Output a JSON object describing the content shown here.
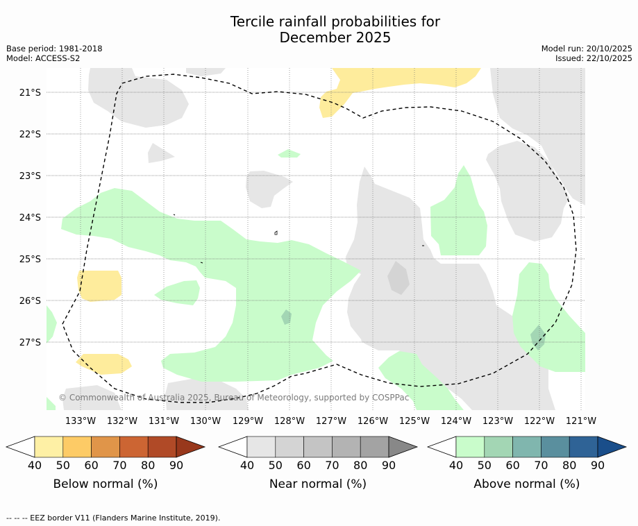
{
  "header": {
    "title_line1": "Tercile rainfall probabilities for",
    "title_line2": "December 2025",
    "base_period": "Base period: 1981-2018",
    "model": "Model: ACCESS-S2",
    "model_run": "Model run: 20/10/2025",
    "issued": "Issued: 22/10/2025"
  },
  "map": {
    "lat_labels": [
      "21°S",
      "22°S",
      "23°S",
      "24°S",
      "25°S",
      "26°S",
      "27°S"
    ],
    "lon_labels": [
      "133°W",
      "132°W",
      "131°W",
      "130°W",
      "129°W",
      "128°W",
      "127°W",
      "126°W",
      "125°W",
      "124°W",
      "123°W",
      "122°W",
      "121°W"
    ],
    "copyright": "© Commonwealth of Australia 2025, Bureau of Meteorology, supported by COSPPac",
    "colors": {
      "near_normal": "#e6e6e6",
      "above_normal": "#c9fccb",
      "below_normal": "#feec9c",
      "above_60": "#a3d6b4",
      "near_60": "#d4d4d4",
      "grid": "#777777"
    }
  },
  "legends": [
    {
      "title": "Below normal (%)",
      "ticks": [
        "40",
        "50",
        "60",
        "70",
        "80",
        "90"
      ],
      "colors": [
        "#fef0a5",
        "#fdcb66",
        "#e09549",
        "#cc6533",
        "#b04a27",
        "#98381c"
      ]
    },
    {
      "title": "Near normal (%)",
      "ticks": [
        "40",
        "50",
        "60",
        "70",
        "80",
        "90"
      ],
      "colors": [
        "#e6e6e6",
        "#d4d4d4",
        "#c4c4c4",
        "#b3b3b3",
        "#a3a3a3",
        "#888888"
      ]
    },
    {
      "title": "Above normal (%)",
      "ticks": [
        "40",
        "50",
        "60",
        "70",
        "80",
        "90"
      ],
      "colors": [
        "#c9fccb",
        "#a3d6b4",
        "#80b6ae",
        "#5a8f9e",
        "#2f6396",
        "#1a4e8a"
      ]
    }
  ],
  "footnote": "--  --  -- EEZ border V11 (Flanders Marine Institute, 2019)."
}
